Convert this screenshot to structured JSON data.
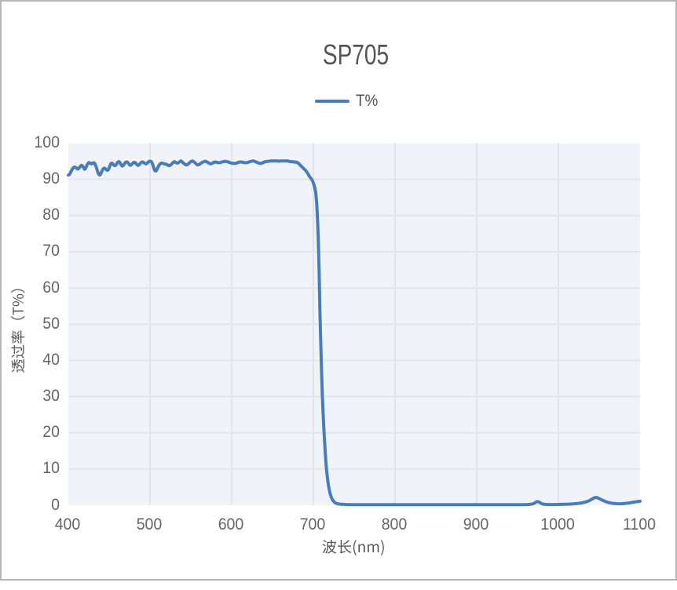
{
  "window": {
    "background": "#ffffff",
    "border_color": "#b6b6b6"
  },
  "chart_data": {
    "type": "line",
    "title": "SP705",
    "xlabel": "波长(nm)",
    "ylabel": "透过率（T%）",
    "xlim": [
      400,
      1100
    ],
    "ylim": [
      0,
      100
    ],
    "x_ticks": [
      400,
      500,
      600,
      700,
      800,
      900,
      1000,
      1100
    ],
    "y_ticks": [
      0,
      10,
      20,
      30,
      40,
      50,
      60,
      70,
      80,
      90,
      100
    ],
    "grid": true,
    "plot_background": "#f0f4f8",
    "grid_color": "#e2e6ec",
    "legend": {
      "position": "top-center",
      "entries": [
        "T%"
      ]
    },
    "series": [
      {
        "name": "T%",
        "color": "#4a7cba",
        "line_width": 4,
        "points": [
          [
            400,
            91.2
          ],
          [
            401,
            91.3
          ],
          [
            402,
            91.6
          ],
          [
            403,
            92.0
          ],
          [
            404,
            92.5
          ],
          [
            405,
            92.9
          ],
          [
            406,
            93.2
          ],
          [
            407,
            93.4
          ],
          [
            408,
            93.4
          ],
          [
            409,
            93.3
          ],
          [
            410,
            93.1
          ],
          [
            411,
            92.9
          ],
          [
            412,
            92.9
          ],
          [
            413,
            93.1
          ],
          [
            414,
            93.4
          ],
          [
            415,
            93.7
          ],
          [
            416,
            93.9
          ],
          [
            417,
            93.8
          ],
          [
            418,
            93.5
          ],
          [
            419,
            93.1
          ],
          [
            420,
            92.8
          ],
          [
            421,
            93.0
          ],
          [
            422,
            93.5
          ],
          [
            423,
            94.0
          ],
          [
            424,
            94.4
          ],
          [
            425,
            94.6
          ],
          [
            426,
            94.6
          ],
          [
            427,
            94.5
          ],
          [
            428,
            94.3
          ],
          [
            429,
            94.3
          ],
          [
            430,
            94.5
          ],
          [
            431,
            94.6
          ],
          [
            432,
            94.5
          ],
          [
            433,
            94.1
          ],
          [
            434,
            93.5
          ],
          [
            435,
            92.8
          ],
          [
            436,
            92.1
          ],
          [
            437,
            91.5
          ],
          [
            438,
            91.2
          ],
          [
            439,
            91.3
          ],
          [
            440,
            91.7
          ],
          [
            441,
            92.2
          ],
          [
            442,
            92.7
          ],
          [
            443,
            93.0
          ],
          [
            444,
            93.1
          ],
          [
            445,
            93.0
          ],
          [
            446,
            92.8
          ],
          [
            447,
            92.6
          ],
          [
            448,
            92.5
          ],
          [
            449,
            92.7
          ],
          [
            450,
            93.2
          ],
          [
            451,
            93.8
          ],
          [
            452,
            94.3
          ],
          [
            453,
            94.5
          ],
          [
            454,
            94.4
          ],
          [
            455,
            94.1
          ],
          [
            456,
            93.9
          ],
          [
            457,
            93.8
          ],
          [
            458,
            93.9
          ],
          [
            459,
            94.2
          ],
          [
            460,
            94.6
          ],
          [
            461,
            94.8
          ],
          [
            462,
            94.9
          ],
          [
            463,
            94.7
          ],
          [
            464,
            94.3
          ],
          [
            465,
            93.9
          ],
          [
            466,
            93.7
          ],
          [
            467,
            93.8
          ],
          [
            468,
            94.1
          ],
          [
            469,
            94.4
          ],
          [
            470,
            94.7
          ],
          [
            471,
            94.8
          ],
          [
            472,
            94.8
          ],
          [
            473,
            94.6
          ],
          [
            474,
            94.3
          ],
          [
            475,
            94.0
          ],
          [
            476,
            93.9
          ],
          [
            477,
            94.0
          ],
          [
            478,
            94.2
          ],
          [
            479,
            94.5
          ],
          [
            480,
            94.7
          ],
          [
            481,
            94.7
          ],
          [
            482,
            94.6
          ],
          [
            483,
            94.3
          ],
          [
            484,
            94.1
          ],
          [
            485,
            93.9
          ],
          [
            486,
            93.9
          ],
          [
            487,
            94.1
          ],
          [
            488,
            94.4
          ],
          [
            489,
            94.6
          ],
          [
            490,
            94.8
          ],
          [
            491,
            94.8
          ],
          [
            492,
            94.7
          ],
          [
            493,
            94.5
          ],
          [
            494,
            94.4
          ],
          [
            495,
            94.3
          ],
          [
            496,
            94.4
          ],
          [
            497,
            94.6
          ],
          [
            498,
            94.8
          ],
          [
            499,
            95.0
          ],
          [
            500,
            95.0
          ],
          [
            501,
            95.0
          ],
          [
            502,
            94.8
          ],
          [
            503,
            94.3
          ],
          [
            504,
            93.6
          ],
          [
            505,
            92.9
          ],
          [
            506,
            92.4
          ],
          [
            507,
            92.3
          ],
          [
            508,
            92.5
          ],
          [
            509,
            93.0
          ],
          [
            510,
            93.5
          ],
          [
            511,
            93.9
          ],
          [
            512,
            94.2
          ],
          [
            513,
            94.4
          ],
          [
            514,
            94.5
          ],
          [
            515,
            94.5
          ],
          [
            516,
            94.4
          ],
          [
            517,
            94.3
          ],
          [
            518,
            94.3
          ],
          [
            519,
            94.2
          ],
          [
            520,
            94.2
          ],
          [
            522,
            93.9
          ],
          [
            524,
            93.8
          ],
          [
            526,
            94.1
          ],
          [
            528,
            94.6
          ],
          [
            530,
            94.9
          ],
          [
            532,
            94.6
          ],
          [
            534,
            94.5
          ],
          [
            536,
            94.8
          ],
          [
            538,
            95.1
          ],
          [
            540,
            94.7
          ],
          [
            542,
            94.3
          ],
          [
            544,
            94.0
          ],
          [
            546,
            94.1
          ],
          [
            548,
            94.5
          ],
          [
            550,
            94.9
          ],
          [
            552,
            95.1
          ],
          [
            554,
            94.8
          ],
          [
            556,
            94.4
          ],
          [
            558,
            94.0
          ],
          [
            560,
            94.1
          ],
          [
            562,
            94.4
          ],
          [
            564,
            94.7
          ],
          [
            566,
            94.9
          ],
          [
            568,
            95.0
          ],
          [
            570,
            94.8
          ],
          [
            572,
            94.5
          ],
          [
            574,
            94.3
          ],
          [
            576,
            94.4
          ],
          [
            578,
            94.7
          ],
          [
            580,
            94.8
          ],
          [
            582,
            94.7
          ],
          [
            584,
            94.6
          ],
          [
            586,
            94.6
          ],
          [
            588,
            94.8
          ],
          [
            590,
            94.9
          ],
          [
            592,
            95.0
          ],
          [
            594,
            94.9
          ],
          [
            596,
            94.8
          ],
          [
            598,
            94.6
          ],
          [
            600,
            94.5
          ],
          [
            602,
            94.4
          ],
          [
            604,
            94.4
          ],
          [
            606,
            94.5
          ],
          [
            608,
            94.7
          ],
          [
            610,
            94.8
          ],
          [
            612,
            94.8
          ],
          [
            614,
            94.7
          ],
          [
            616,
            94.6
          ],
          [
            618,
            94.6
          ],
          [
            620,
            94.7
          ],
          [
            622,
            94.9
          ],
          [
            624,
            95.0
          ],
          [
            626,
            95.1
          ],
          [
            628,
            95.0
          ],
          [
            630,
            94.8
          ],
          [
            632,
            94.6
          ],
          [
            634,
            94.4
          ],
          [
            636,
            94.4
          ],
          [
            638,
            94.6
          ],
          [
            640,
            94.8
          ],
          [
            642,
            94.9
          ],
          [
            644,
            95.0
          ],
          [
            646,
            95.0
          ],
          [
            648,
            95.1
          ],
          [
            650,
            95.1
          ],
          [
            652,
            95.1
          ],
          [
            654,
            95.1
          ],
          [
            656,
            95.1
          ],
          [
            658,
            95.0
          ],
          [
            660,
            95.1
          ],
          [
            662,
            95.1
          ],
          [
            664,
            95.1
          ],
          [
            666,
            95.1
          ],
          [
            668,
            95.1
          ],
          [
            670,
            95.0
          ],
          [
            672,
            94.9
          ],
          [
            674,
            94.9
          ],
          [
            676,
            94.8
          ],
          [
            678,
            94.8
          ],
          [
            680,
            94.7
          ],
          [
            682,
            94.4
          ],
          [
            684,
            93.9
          ],
          [
            686,
            93.5
          ],
          [
            688,
            93.0
          ],
          [
            690,
            92.6
          ],
          [
            691,
            92.3
          ],
          [
            692,
            92.0
          ],
          [
            693,
            91.7
          ],
          [
            694,
            91.3
          ],
          [
            695,
            90.9
          ],
          [
            696,
            90.6
          ],
          [
            697,
            90.3
          ],
          [
            698,
            90.0
          ],
          [
            699,
            89.6
          ],
          [
            700,
            89.0
          ],
          [
            701,
            88.3
          ],
          [
            702,
            87.4
          ],
          [
            703,
            86.2
          ],
          [
            704,
            83.5
          ],
          [
            705,
            79.5
          ],
          [
            706,
            74.0
          ],
          [
            707,
            65.0
          ],
          [
            708,
            54.0
          ],
          [
            709,
            45.0
          ],
          [
            710,
            37.0
          ],
          [
            711,
            30.5
          ],
          [
            712,
            25.0
          ],
          [
            713,
            20.5
          ],
          [
            714,
            16.5
          ],
          [
            715,
            13.0
          ],
          [
            716,
            10.2
          ],
          [
            717,
            8.0
          ],
          [
            718,
            6.2
          ],
          [
            719,
            4.8
          ],
          [
            720,
            3.7
          ],
          [
            721,
            2.9
          ],
          [
            722,
            2.2
          ],
          [
            723,
            1.7
          ],
          [
            724,
            1.3
          ],
          [
            726,
            0.8
          ],
          [
            728,
            0.55
          ],
          [
            730,
            0.4
          ],
          [
            733,
            0.3
          ],
          [
            736,
            0.25
          ],
          [
            740,
            0.2
          ],
          [
            750,
            0.18
          ],
          [
            760,
            0.16
          ],
          [
            780,
            0.15
          ],
          [
            800,
            0.15
          ],
          [
            820,
            0.15
          ],
          [
            840,
            0.15
          ],
          [
            860,
            0.15
          ],
          [
            880,
            0.15
          ],
          [
            900,
            0.15
          ],
          [
            920,
            0.16
          ],
          [
            940,
            0.17
          ],
          [
            955,
            0.18
          ],
          [
            962,
            0.2
          ],
          [
            966,
            0.25
          ],
          [
            969,
            0.4
          ],
          [
            971,
            0.65
          ],
          [
            973,
            0.9
          ],
          [
            974,
            1.0
          ],
          [
            975,
            1.0
          ],
          [
            977,
            0.8
          ],
          [
            979,
            0.5
          ],
          [
            981,
            0.32
          ],
          [
            984,
            0.24
          ],
          [
            988,
            0.2
          ],
          [
            995,
            0.2
          ],
          [
            1000,
            0.22
          ],
          [
            1006,
            0.26
          ],
          [
            1012,
            0.3
          ],
          [
            1018,
            0.4
          ],
          [
            1024,
            0.52
          ],
          [
            1029,
            0.68
          ],
          [
            1034,
            0.95
          ],
          [
            1038,
            1.3
          ],
          [
            1041,
            1.7
          ],
          [
            1043,
            1.95
          ],
          [
            1045,
            2.15
          ],
          [
            1047,
            2.15
          ],
          [
            1049,
            1.95
          ],
          [
            1052,
            1.6
          ],
          [
            1055,
            1.3
          ],
          [
            1058,
            1.0
          ],
          [
            1061,
            0.78
          ],
          [
            1064,
            0.62
          ],
          [
            1067,
            0.52
          ],
          [
            1070,
            0.45
          ],
          [
            1073,
            0.42
          ],
          [
            1076,
            0.42
          ],
          [
            1079,
            0.46
          ],
          [
            1082,
            0.52
          ],
          [
            1085,
            0.6
          ],
          [
            1088,
            0.7
          ],
          [
            1091,
            0.82
          ],
          [
            1094,
            0.93
          ],
          [
            1097,
            1.03
          ],
          [
            1100,
            1.1
          ]
        ]
      }
    ]
  }
}
